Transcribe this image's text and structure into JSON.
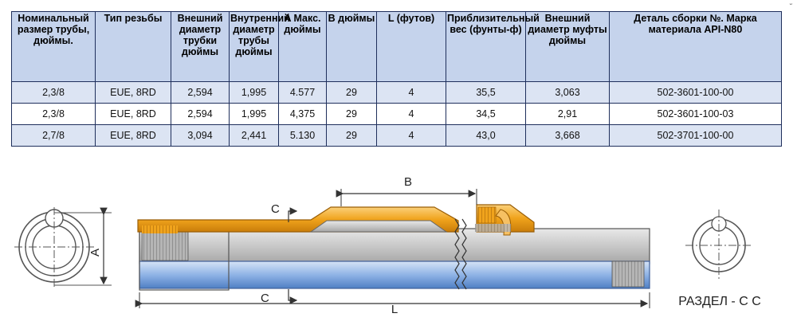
{
  "table": {
    "headers": [
      "Номинальный размер трубы, дюймы.",
      "Тип резьбы",
      "Внешний диаметр трубки дюймы",
      "Внутренний диаметр трубы дюймы",
      "A Макс. дюймы",
      "B дюймы",
      "L (футов)",
      "Приблизительный вес (фунты-ф)",
      "Внешний диаметр муфты дюймы",
      "Деталь сборки №. Марка материала API-N80"
    ],
    "rows": [
      [
        "2,3/8",
        "EUE, 8RD",
        "2,594",
        "1,995",
        "4.577",
        "29",
        "4",
        "35,5",
        "3,063",
        "502-3601-100-00"
      ],
      [
        "2,3/8",
        "EUE, 8RD",
        "2,594",
        "1,995",
        "4,375",
        "29",
        "4",
        "34,5",
        "2,91",
        "502-3601-100-03"
      ],
      [
        "2,7/8",
        "EUE, 8RD",
        "3,094",
        "2,441",
        "5.130",
        "29",
        "4",
        "43,0",
        "3,668",
        "502-3701-100-00"
      ]
    ]
  },
  "drawing": {
    "label_a": "A",
    "label_b": "B",
    "label_c_top": "C",
    "label_c_bottom": "C",
    "label_l": "L",
    "section_label": "РАЗДЕЛ - С С"
  },
  "corner_mark": "ᵕ",
  "colors": {
    "header_bg": "#c5d3ec",
    "row_alt_bg": "#dce4f3",
    "pipe_blue": "#8fb3e6",
    "mandrel_orange": "#f0a31c"
  }
}
